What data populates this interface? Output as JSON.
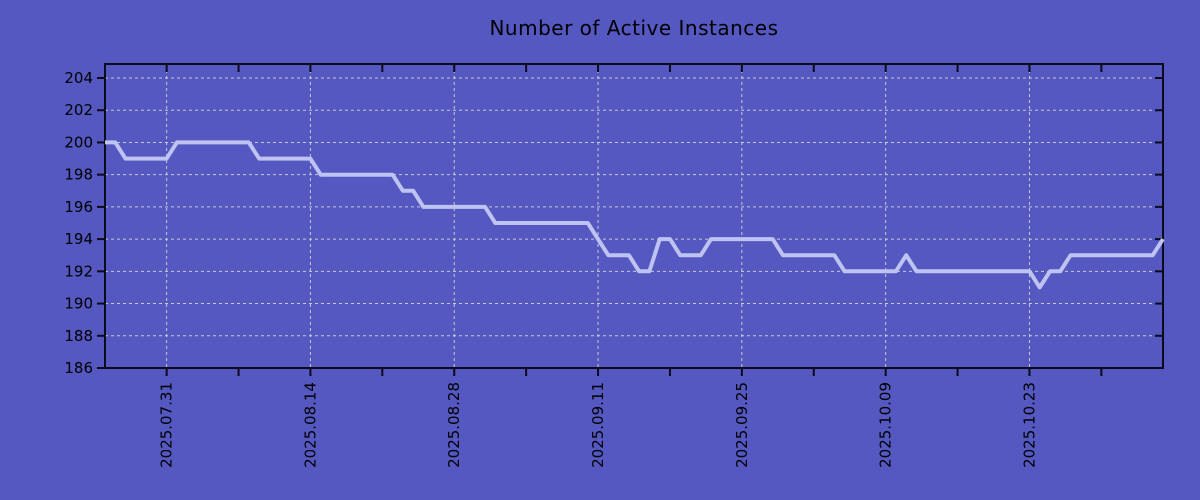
{
  "chart_data": {
    "type": "line",
    "title": "Number of Active Instances",
    "x_start_date": "2025.07.25",
    "x_step": "1 day",
    "x_tick_labels": [
      "2025.07.31",
      "2025.08.14",
      "2025.08.28",
      "2025.09.11",
      "2025.09.25",
      "2025.10.09",
      "2025.10.23"
    ],
    "x_tick_day_indices": [
      6,
      20,
      34,
      48,
      62,
      76,
      90
    ],
    "x_minor_tick_day_indices": [
      6,
      13,
      20,
      27,
      34,
      41,
      48,
      55,
      62,
      69,
      76,
      83,
      90,
      97
    ],
    "ylim": [
      186,
      204
    ],
    "y_ticks": [
      186,
      188,
      190,
      192,
      194,
      196,
      198,
      200,
      202,
      204
    ],
    "grid": "dashed",
    "legend": "none",
    "series": [
      {
        "name": "Active Instances",
        "values": [
          200,
          200,
          199,
          199,
          199,
          199,
          199,
          200,
          200,
          200,
          200,
          200,
          200,
          200,
          200,
          199,
          199,
          199,
          199,
          199,
          199,
          198,
          198,
          198,
          198,
          198,
          198,
          198,
          198,
          197,
          197,
          196,
          196,
          196,
          196,
          196,
          196,
          196,
          195,
          195,
          195,
          195,
          195,
          195,
          195,
          195,
          195,
          195,
          194,
          193,
          193,
          193,
          192,
          192,
          194,
          194,
          193,
          193,
          193,
          194,
          194,
          194,
          194,
          194,
          194,
          194,
          193,
          193,
          193,
          193,
          193,
          193,
          192,
          192,
          192,
          192,
          192,
          192,
          193,
          192,
          192,
          192,
          192,
          192,
          192,
          192,
          192,
          192,
          192,
          192,
          192,
          191,
          192,
          192,
          193,
          193,
          193,
          193,
          193,
          193,
          193,
          193,
          193,
          194
        ]
      }
    ],
    "colors": {
      "background": "#5458C0",
      "line": "#BEC3F1",
      "grid": "#D6D6D6",
      "axis": "#0B0B1A",
      "text": "#000000"
    }
  }
}
